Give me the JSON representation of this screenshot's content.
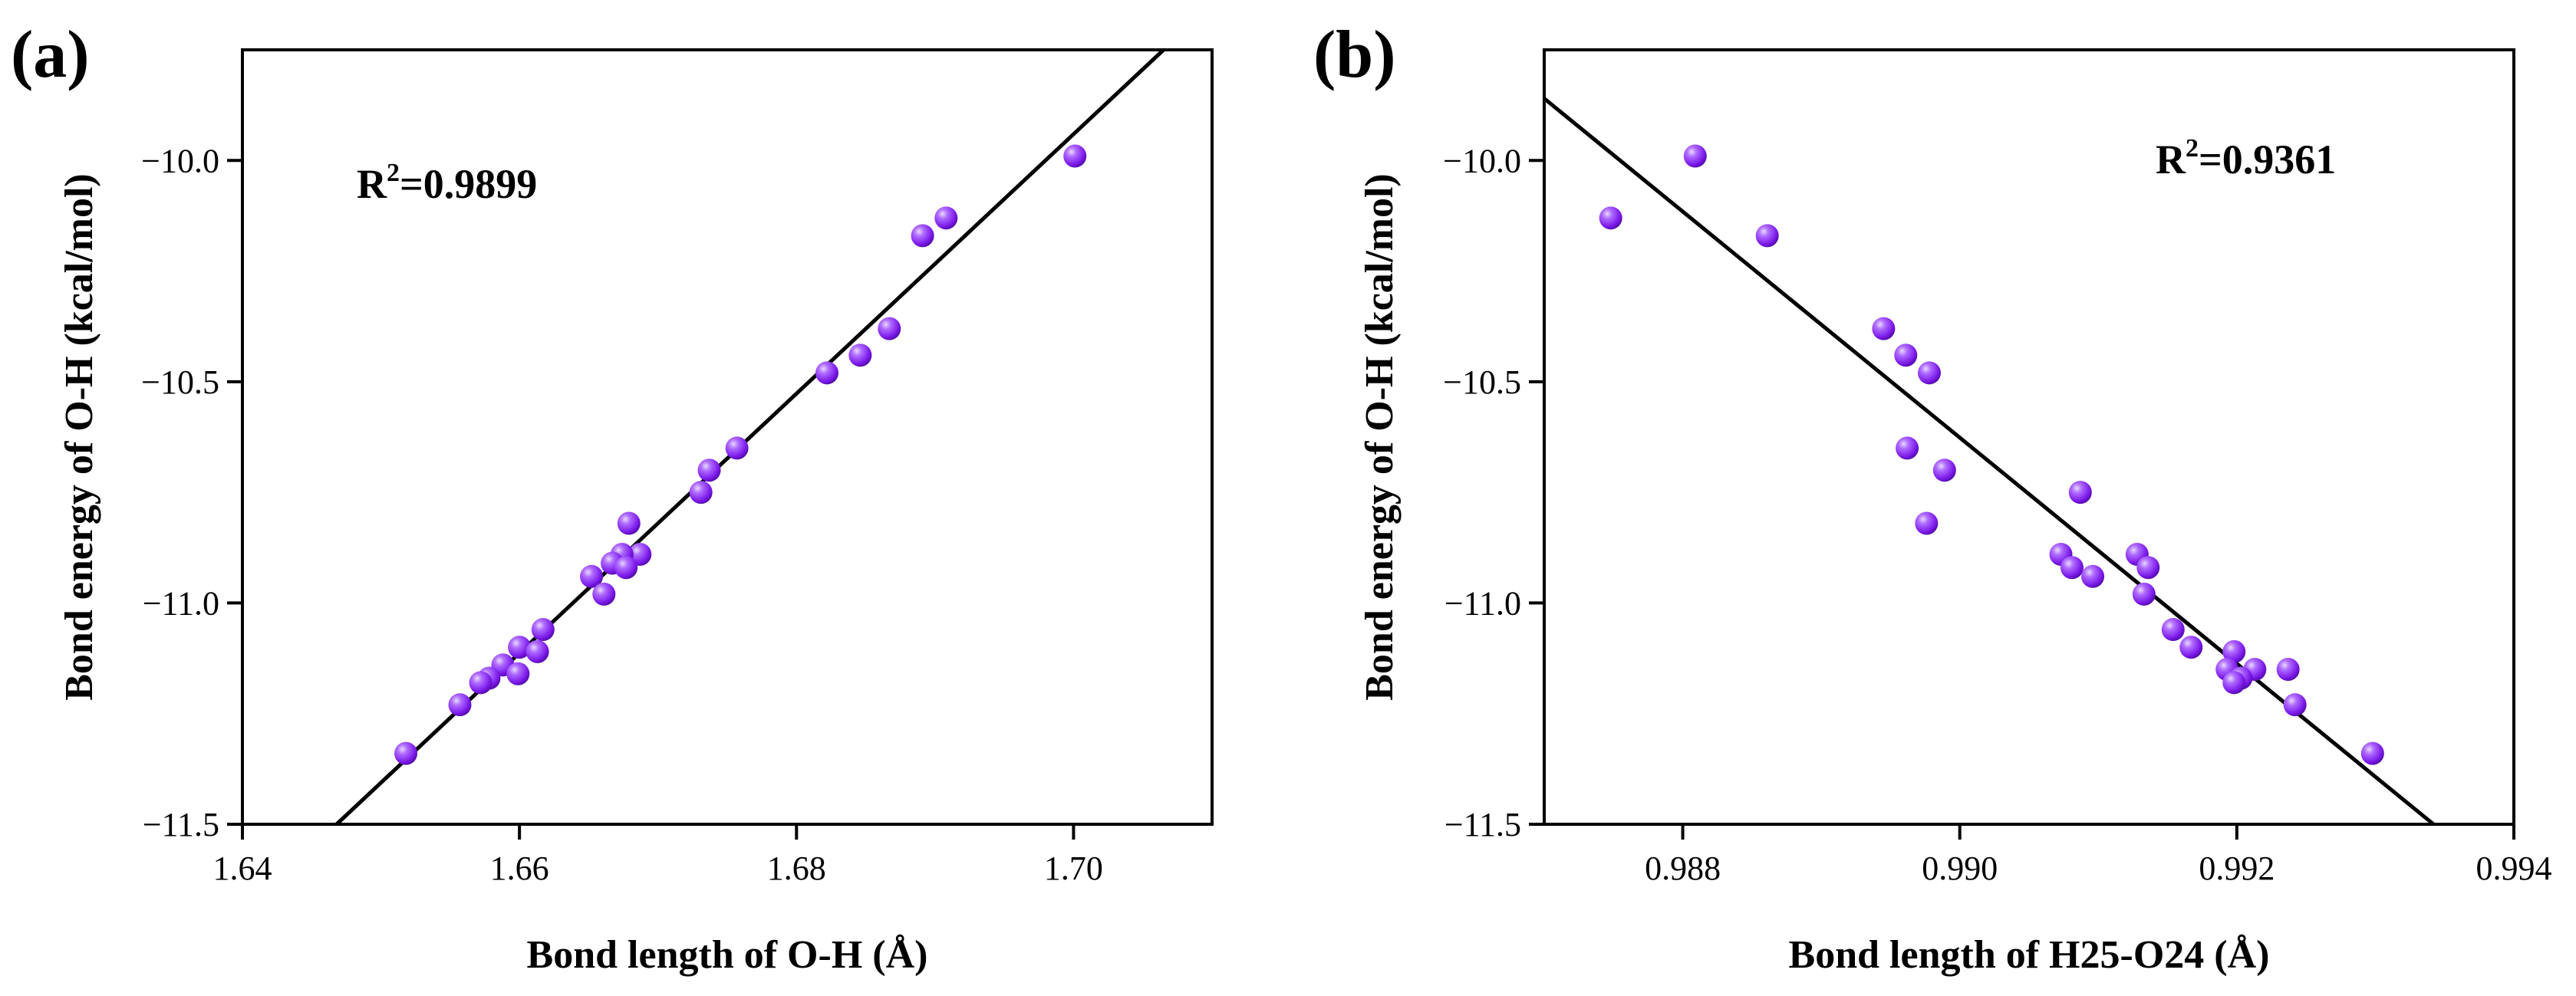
{
  "chart_data": [
    {
      "panel_label": "(a)",
      "type": "scatter",
      "xlabel": "Bond length of O-H (Å)",
      "ylabel": "Bond energy of O-H (kcal/mol)",
      "xlim": [
        1.64,
        1.71
      ],
      "ylim": [
        -11.5,
        -9.75
      ],
      "xticks": [
        1.64,
        1.66,
        1.68,
        1.7
      ],
      "xtick_labels": [
        "1.64",
        "1.66",
        "1.68",
        "1.70"
      ],
      "yticks": [
        -10.0,
        -10.5,
        -11.0,
        -11.5
      ],
      "ytick_labels": [
        "−10.0",
        "−10.5",
        "−11.0",
        "−11.5"
      ],
      "annotation": {
        "prefix": "R",
        "sup": "2",
        "suffix": "=0.9899",
        "position": "top-left"
      },
      "fit_line": {
        "x": [
          1.6468,
          1.7065
        ],
        "y": [
          -11.5,
          -9.75
        ]
      },
      "marker_color": "#8a2be2",
      "points": [
        {
          "x": 1.7001,
          "y": -9.99
        },
        {
          "x": 1.6908,
          "y": -10.13
        },
        {
          "x": 1.6891,
          "y": -10.17
        },
        {
          "x": 1.6867,
          "y": -10.38
        },
        {
          "x": 1.6846,
          "y": -10.44
        },
        {
          "x": 1.6822,
          "y": -10.48
        },
        {
          "x": 1.6757,
          "y": -10.65
        },
        {
          "x": 1.6737,
          "y": -10.7
        },
        {
          "x": 1.6731,
          "y": -10.75
        },
        {
          "x": 1.6679,
          "y": -10.82
        },
        {
          "x": 1.6687,
          "y": -10.89
        },
        {
          "x": 1.6674,
          "y": -10.89
        },
        {
          "x": 1.6667,
          "y": -10.91
        },
        {
          "x": 1.6677,
          "y": -10.92
        },
        {
          "x": 1.6652,
          "y": -10.94
        },
        {
          "x": 1.6661,
          "y": -10.98
        },
        {
          "x": 1.6617,
          "y": -11.06
        },
        {
          "x": 1.66,
          "y": -11.1
        },
        {
          "x": 1.6613,
          "y": -11.11
        },
        {
          "x": 1.6588,
          "y": -11.14
        },
        {
          "x": 1.6599,
          "y": -11.16
        },
        {
          "x": 1.6578,
          "y": -11.17
        },
        {
          "x": 1.6572,
          "y": -11.18
        },
        {
          "x": 1.6557,
          "y": -11.23
        },
        {
          "x": 1.6518,
          "y": -11.34
        }
      ]
    },
    {
      "panel_label": "(b)",
      "type": "scatter",
      "xlabel": "Bond length of H25-O24 (Å)",
      "ylabel": "Bond energy of O-H (kcal/mol)",
      "xlim": [
        0.987,
        0.994
      ],
      "ylim": [
        -11.5,
        -9.75
      ],
      "xticks": [
        0.988,
        0.99,
        0.992,
        0.994
      ],
      "xtick_labels": [
        "0.988",
        "0.990",
        "0.992",
        "0.994"
      ],
      "yticks": [
        -10.0,
        -10.5,
        -11.0,
        -11.5
      ],
      "ytick_labels": [
        "−10.0",
        "−10.5",
        "−11.0",
        "−11.5"
      ],
      "annotation": {
        "prefix": "R",
        "sup": "2",
        "suffix": "=0.9361",
        "position": "top-right"
      },
      "fit_line": {
        "x": [
          0.987,
          0.99342
        ],
        "y": [
          -9.86,
          -11.5
        ]
      },
      "marker_color": "#8a2be2",
      "points": [
        {
          "x": 0.98748,
          "y": -10.13
        },
        {
          "x": 0.98809,
          "y": -9.99
        },
        {
          "x": 0.98861,
          "y": -10.17
        },
        {
          "x": 0.98945,
          "y": -10.38
        },
        {
          "x": 0.98961,
          "y": -10.44
        },
        {
          "x": 0.98978,
          "y": -10.48
        },
        {
          "x": 0.98962,
          "y": -10.65
        },
        {
          "x": 0.98989,
          "y": -10.7
        },
        {
          "x": 0.99087,
          "y": -10.75
        },
        {
          "x": 0.98976,
          "y": -10.82
        },
        {
          "x": 0.99073,
          "y": -10.89
        },
        {
          "x": 0.99128,
          "y": -10.89
        },
        {
          "x": 0.99136,
          "y": -10.92
        },
        {
          "x": 0.99081,
          "y": -10.92
        },
        {
          "x": 0.99096,
          "y": -10.94
        },
        {
          "x": 0.99133,
          "y": -10.98
        },
        {
          "x": 0.99154,
          "y": -11.06
        },
        {
          "x": 0.99167,
          "y": -11.1
        },
        {
          "x": 0.99198,
          "y": -11.11
        },
        {
          "x": 0.99213,
          "y": -11.15
        },
        {
          "x": 0.99237,
          "y": -11.15
        },
        {
          "x": 0.99193,
          "y": -11.15
        },
        {
          "x": 0.99203,
          "y": -11.17
        },
        {
          "x": 0.99198,
          "y": -11.18
        },
        {
          "x": 0.99242,
          "y": -11.23
        },
        {
          "x": 0.99298,
          "y": -11.34
        }
      ]
    }
  ]
}
